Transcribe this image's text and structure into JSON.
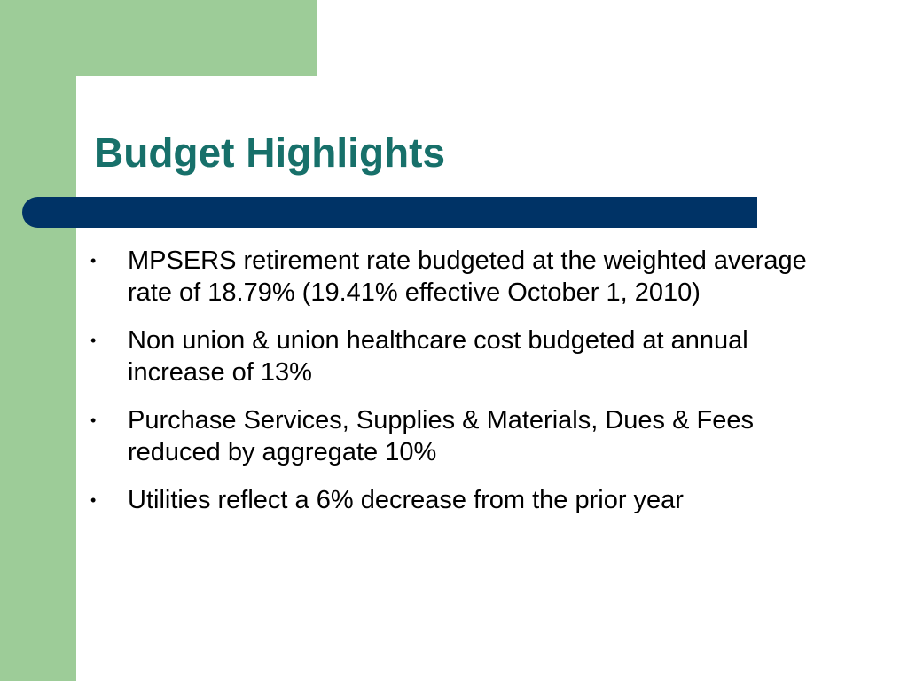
{
  "slide": {
    "title": "Budget Highlights",
    "bullet_marker": "•",
    "bullets": [
      "MPSERS retirement rate budgeted at the weighted average rate of 18.79% (19.41% effective October 1, 2010)",
      "Non union & union healthcare cost budgeted at annual increase of 13%",
      "Purchase Services, Supplies & Materials, Dues & Fees reduced by aggregate 10%",
      "Utilities reflect a 6% decrease from the prior year"
    ]
  },
  "colors": {
    "accent_green": "#9dcc98",
    "title_teal": "#17706a",
    "bar_navy": "#003366"
  }
}
